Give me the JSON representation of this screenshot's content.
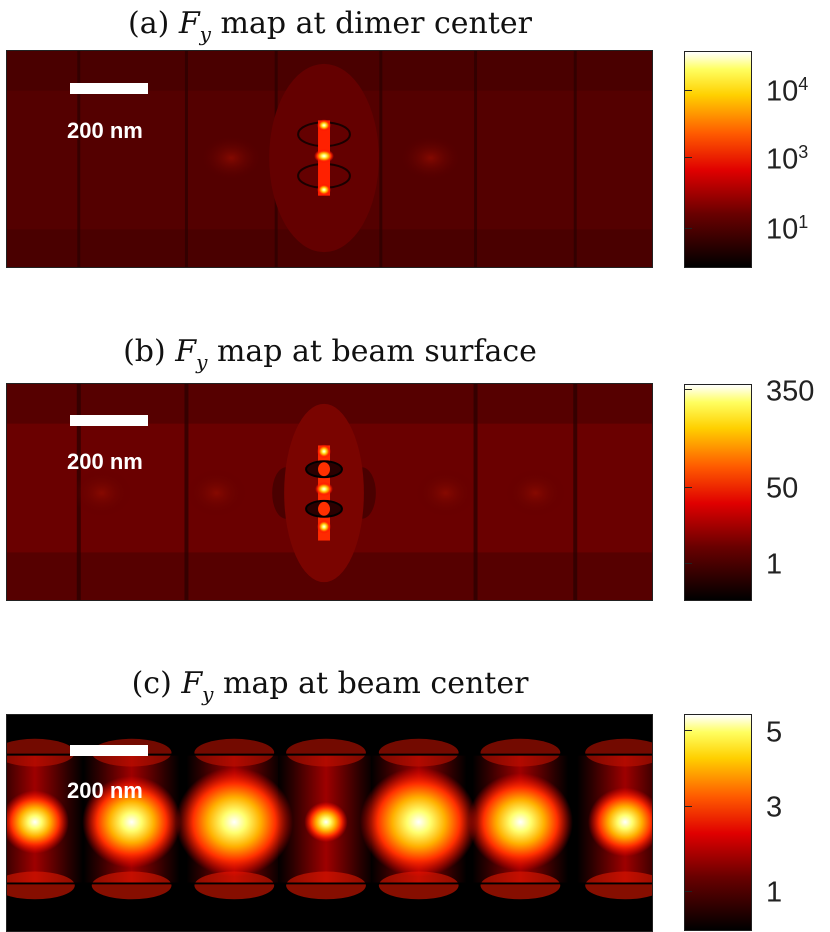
{
  "chart_data": [
    {
      "type": "heatmap",
      "title_prefix": "(a)",
      "title_symbol": "F",
      "title_subscript": "y",
      "title_suffix": "map at dimer center",
      "scalebar_label": "200 nm",
      "colormap": "hot",
      "colorbar_scale": "log",
      "colorbar_ticks": [
        {
          "base": "10",
          "exp": "4"
        },
        {
          "base": "10",
          "exp": "3"
        },
        {
          "base": "10",
          "exp": "1"
        }
      ]
    },
    {
      "type": "heatmap",
      "title_prefix": "(b)",
      "title_symbol": "F",
      "title_subscript": "y",
      "title_suffix": "map at beam surface",
      "scalebar_label": "200 nm",
      "colormap": "hot",
      "colorbar_scale": "log",
      "colorbar_ticks": [
        {
          "base": "350",
          "exp": ""
        },
        {
          "base": "50",
          "exp": ""
        },
        {
          "base": "1",
          "exp": ""
        }
      ]
    },
    {
      "type": "heatmap",
      "title_prefix": "(c)",
      "title_symbol": "F",
      "title_subscript": "y",
      "title_suffix": "map at beam center",
      "scalebar_label": "200 nm",
      "colormap": "hot",
      "colorbar_scale": "linear",
      "colorbar_ticks": [
        {
          "base": "5",
          "exp": ""
        },
        {
          "base": "3",
          "exp": ""
        },
        {
          "base": "1",
          "exp": ""
        }
      ]
    }
  ],
  "colors": {
    "hot_black": "#000000",
    "hot_darkred": "#5a0000",
    "hot_red": "#ff1a00",
    "hot_orange": "#ff8c00",
    "hot_yellow": "#ffff30",
    "hot_white": "#ffffff"
  }
}
